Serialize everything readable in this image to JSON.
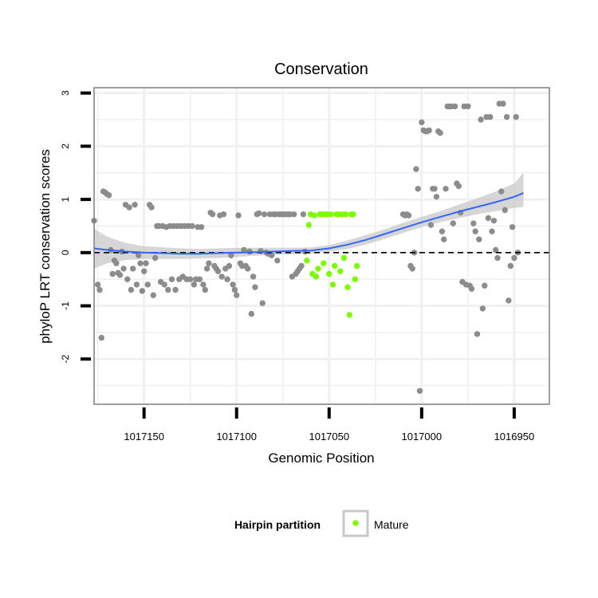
{
  "chart_data": {
    "type": "scatter",
    "title": "Conservation",
    "xlabel": "Genomic Position",
    "ylabel": "phyloP LRT conservation scores",
    "x_reversed": true,
    "xlim": [
      1017177,
      1016931
    ],
    "ylim": [
      -2.85,
      3.1
    ],
    "xticks": [
      1017150,
      1017100,
      1017050,
      1017000,
      1016950
    ],
    "xtick_labels": [
      "1017150",
      "1017100",
      "1017050",
      "1017000",
      "1016950"
    ],
    "yticks": [
      -2,
      -1,
      0,
      1,
      2,
      3
    ],
    "ytick_labels": [
      "-2",
      "-1",
      "0",
      "1",
      "2",
      "3"
    ],
    "grid": true,
    "reference_line": {
      "y": 0,
      "style": "dashed"
    },
    "legend": {
      "title": "Hairpin partition",
      "position": "bottom",
      "entries": [
        {
          "label": "Mature",
          "color": "#7cfc00"
        }
      ]
    },
    "colors": {
      "other": "#8c8c8c",
      "mature": "#7cfc00",
      "smooth": "#3366ff",
      "band": "#c8c8c8"
    },
    "series": [
      {
        "name": "Other",
        "points": [
          [
            1017177,
            0.6
          ],
          [
            1017175,
            -0.6
          ],
          [
            1017174,
            -0.7
          ],
          [
            1017173,
            -1.6
          ],
          [
            1017172,
            1.15
          ],
          [
            1017171,
            1.13
          ],
          [
            1017170,
            1.1
          ],
          [
            1017169,
            1.08
          ],
          [
            1017168,
            0.05
          ],
          [
            1017167,
            -0.4
          ],
          [
            1017166,
            -0.15
          ],
          [
            1017165,
            -0.2
          ],
          [
            1017164,
            -0.38
          ],
          [
            1017163,
            -0.42
          ],
          [
            1017162,
            0.02
          ],
          [
            1017161,
            -0.3
          ],
          [
            1017160,
            0.9
          ],
          [
            1017159,
            -0.5
          ],
          [
            1017158,
            0.85
          ],
          [
            1017157,
            -0.7
          ],
          [
            1017156,
            -0.3
          ],
          [
            1017155,
            0.9
          ],
          [
            1017154,
            -0.6
          ],
          [
            1017153,
            -0.05
          ],
          [
            1017152,
            -0.2
          ],
          [
            1017151,
            -0.72
          ],
          [
            1017150,
            -0.35
          ],
          [
            1017149,
            -0.2
          ],
          [
            1017148,
            -0.6
          ],
          [
            1017147,
            0.9
          ],
          [
            1017146,
            0.85
          ],
          [
            1017145,
            -0.8
          ],
          [
            1017144,
            -0.1
          ],
          [
            1017143,
            0.5
          ],
          [
            1017142,
            0.5
          ],
          [
            1017141,
            -0.55
          ],
          [
            1017140,
            0.5
          ],
          [
            1017139,
            -0.6
          ],
          [
            1017138,
            0.48
          ],
          [
            1017137,
            -0.7
          ],
          [
            1017136,
            0.5
          ],
          [
            1017135,
            -0.5
          ],
          [
            1017134,
            0.5
          ],
          [
            1017133,
            -0.7
          ],
          [
            1017132,
            0.5
          ],
          [
            1017131,
            -0.5
          ],
          [
            1017130,
            0.5
          ],
          [
            1017129,
            -0.45
          ],
          [
            1017128,
            0.5
          ],
          [
            1017127,
            -0.5
          ],
          [
            1017126,
            0.5
          ],
          [
            1017125,
            -0.5
          ],
          [
            1017124,
            0.5
          ],
          [
            1017123,
            -0.6
          ],
          [
            1017122,
            -0.5
          ],
          [
            1017121,
            0.48
          ],
          [
            1017120,
            -0.5
          ],
          [
            1017119,
            0.48
          ],
          [
            1017118,
            -0.6
          ],
          [
            1017117,
            -0.7
          ],
          [
            1017116,
            -0.3
          ],
          [
            1017115,
            -0.2
          ],
          [
            1017114,
            0.75
          ],
          [
            1017113,
            0.72
          ],
          [
            1017112,
            -0.25
          ],
          [
            1017111,
            -0.3
          ],
          [
            1017110,
            -0.35
          ],
          [
            1017109,
            0.7
          ],
          [
            1017108,
            -0.45
          ],
          [
            1017107,
            0.72
          ],
          [
            1017106,
            -0.3
          ],
          [
            1017105,
            -0.5
          ],
          [
            1017104,
            -0.25
          ],
          [
            1017103,
            -0.05
          ],
          [
            1017102,
            -0.6
          ],
          [
            1017101,
            -0.7
          ],
          [
            1017100,
            -0.8
          ],
          [
            1017099,
            0.7
          ],
          [
            1017098,
            -0.2
          ],
          [
            1017097,
            -0.25
          ],
          [
            1017096,
            0.05
          ],
          [
            1017095,
            -0.25
          ],
          [
            1017094,
            -0.3
          ],
          [
            1017093,
            0.02
          ],
          [
            1017092,
            -1.15
          ],
          [
            1017091,
            -0.45
          ],
          [
            1017090,
            -0.65
          ],
          [
            1017089,
            0.72
          ],
          [
            1017088,
            0.74
          ],
          [
            1017087,
            0.03
          ],
          [
            1017086,
            -0.95
          ],
          [
            1017085,
            0.72
          ],
          [
            1017084,
            0.0
          ],
          [
            1017083,
            -0.02
          ],
          [
            1017082,
            0.72
          ],
          [
            1017081,
            -0.05
          ],
          [
            1017080,
            0.72
          ],
          [
            1017079,
            0.72
          ],
          [
            1017078,
            -0.15
          ],
          [
            1017077,
            0.72
          ],
          [
            1017076,
            0.72
          ],
          [
            1017075,
            0.72
          ],
          [
            1017074,
            0.72
          ],
          [
            1017073,
            0.72
          ],
          [
            1017072,
            0.72
          ],
          [
            1017071,
            0.72
          ],
          [
            1017070,
            -0.45
          ],
          [
            1017069,
            0.72
          ],
          [
            1017068,
            -0.4
          ],
          [
            1017067,
            -0.35
          ],
          [
            1017066,
            -0.3
          ],
          [
            1017065,
            -0.25
          ],
          [
            1017064,
            0.72
          ],
          [
            1017063,
            0.02
          ],
          [
            1017010,
            0.72
          ],
          [
            1017009,
            0.7
          ],
          [
            1017008,
            0.72
          ],
          [
            1017007,
            0.7
          ],
          [
            1017006,
            -0.25
          ],
          [
            1017005,
            -0.3
          ],
          [
            1017004,
            0.0
          ],
          [
            1017003,
            1.57
          ],
          [
            1017002,
            1.2
          ],
          [
            1017001,
            -2.6
          ],
          [
            1017000,
            2.45
          ],
          [
            1016999,
            2.3
          ],
          [
            1016998,
            2.28
          ],
          [
            1016997,
            2.28
          ],
          [
            1016996,
            2.3
          ],
          [
            1016995,
            0.52
          ],
          [
            1016994,
            1.2
          ],
          [
            1016993,
            1.2
          ],
          [
            1016992,
            1.05
          ],
          [
            1016991,
            2.28
          ],
          [
            1016990,
            2.25
          ],
          [
            1016989,
            0.4
          ],
          [
            1016988,
            0.25
          ],
          [
            1016987,
            1.2
          ],
          [
            1016986,
            2.75
          ],
          [
            1016985,
            2.75
          ],
          [
            1016984,
            2.75
          ],
          [
            1016983,
            0.55
          ],
          [
            1016982,
            2.75
          ],
          [
            1016981,
            1.3
          ],
          [
            1016980,
            1.25
          ],
          [
            1016979,
            0.75
          ],
          [
            1016978,
            -0.55
          ],
          [
            1016977,
            2.75
          ],
          [
            1016976,
            -0.6
          ],
          [
            1016975,
            2.75
          ],
          [
            1016974,
            -0.62
          ],
          [
            1016973,
            -0.68
          ],
          [
            1016972,
            0.55
          ],
          [
            1016971,
            0.4
          ],
          [
            1016970,
            -1.53
          ],
          [
            1016969,
            0.25
          ],
          [
            1016968,
            2.5
          ],
          [
            1016967,
            -1.05
          ],
          [
            1016966,
            -0.62
          ],
          [
            1016965,
            2.55
          ],
          [
            1016964,
            0.65
          ],
          [
            1016963,
            2.55
          ],
          [
            1016962,
            0.4
          ],
          [
            1016961,
            0.6
          ],
          [
            1016960,
            0.05
          ],
          [
            1016959,
            -0.1
          ],
          [
            1016958,
            2.8
          ],
          [
            1016957,
            1.15
          ],
          [
            1016956,
            2.8
          ],
          [
            1016955,
            0.8
          ],
          [
            1016954,
            2.55
          ],
          [
            1016953,
            -0.9
          ],
          [
            1016952,
            -0.25
          ],
          [
            1016951,
            0.48
          ],
          [
            1016950,
            -0.1
          ],
          [
            1016949,
            2.55
          ],
          [
            1016948,
            0.0
          ]
        ]
      },
      {
        "name": "Mature",
        "points": [
          [
            1017062,
            -0.15
          ],
          [
            1017061,
            0.52
          ],
          [
            1017060,
            0.72
          ],
          [
            1017059,
            -0.4
          ],
          [
            1017058,
            0.7
          ],
          [
            1017057,
            -0.45
          ],
          [
            1017056,
            -0.3
          ],
          [
            1017055,
            0.72
          ],
          [
            1017054,
            0.72
          ],
          [
            1017053,
            -0.2
          ],
          [
            1017052,
            0.72
          ],
          [
            1017051,
            0.72
          ],
          [
            1017050,
            -0.4
          ],
          [
            1017049,
            0.72
          ],
          [
            1017048,
            -0.6
          ],
          [
            1017047,
            -0.25
          ],
          [
            1017046,
            0.72
          ],
          [
            1017045,
            0.72
          ],
          [
            1017044,
            -0.35
          ],
          [
            1017043,
            0.72
          ],
          [
            1017042,
            -0.1
          ],
          [
            1017041,
            0.72
          ],
          [
            1017040,
            -0.65
          ],
          [
            1017039,
            -1.17
          ],
          [
            1017038,
            0.72
          ],
          [
            1017037,
            0.72
          ],
          [
            1017036,
            -0.5
          ],
          [
            1017035,
            -0.25
          ]
        ]
      }
    ],
    "smooth": {
      "x": [
        1017178,
        1017170,
        1017160,
        1017150,
        1017140,
        1017130,
        1017120,
        1017110,
        1017100,
        1017090,
        1017080,
        1017070,
        1017060,
        1017050,
        1017040,
        1017030,
        1017020,
        1017010,
        1017000,
        1016990,
        1016980,
        1016970,
        1016960,
        1016950,
        1016945
      ],
      "y": [
        0.08,
        0.05,
        0.02,
        0.0,
        -0.01,
        -0.02,
        -0.02,
        -0.01,
        0.0,
        0.01,
        0.02,
        0.03,
        0.04,
        0.08,
        0.15,
        0.24,
        0.35,
        0.46,
        0.57,
        0.67,
        0.77,
        0.86,
        0.95,
        1.05,
        1.12
      ],
      "lower": [
        -0.3,
        -0.2,
        -0.14,
        -0.12,
        -0.12,
        -0.12,
        -0.11,
        -0.1,
        -0.08,
        -0.06,
        -0.04,
        -0.03,
        -0.02,
        0.02,
        0.07,
        0.15,
        0.26,
        0.37,
        0.48,
        0.57,
        0.65,
        0.72,
        0.78,
        0.84,
        0.86
      ],
      "upper": [
        0.45,
        0.3,
        0.18,
        0.12,
        0.1,
        0.08,
        0.07,
        0.08,
        0.09,
        0.09,
        0.09,
        0.09,
        0.1,
        0.14,
        0.23,
        0.33,
        0.44,
        0.56,
        0.67,
        0.78,
        0.9,
        1.02,
        1.15,
        1.3,
        1.5
      ]
    }
  }
}
